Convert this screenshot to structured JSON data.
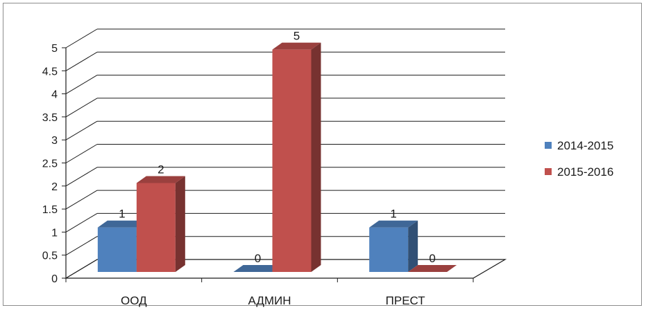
{
  "chart_data": {
    "type": "bar",
    "subtype": "3d-clustered-column",
    "title": "",
    "xlabel": "",
    "ylabel": "",
    "categories": [
      "ООД",
      "АДМИН",
      "ПРЕСТ"
    ],
    "series": [
      {
        "name": "2014-2015",
        "values": [
          1,
          0,
          1
        ],
        "color": "#4f81bd"
      },
      {
        "name": "2015-2016",
        "values": [
          2,
          5,
          0
        ],
        "color": "#c0504d"
      }
    ],
    "ylim": [
      0,
      5
    ],
    "yticks": [
      "0",
      "0.5",
      "1",
      "1.5",
      "2",
      "2.5",
      "3",
      "3.5",
      "4",
      "4.5",
      "5"
    ],
    "grid": true,
    "legend": "right",
    "data_labels": true
  }
}
